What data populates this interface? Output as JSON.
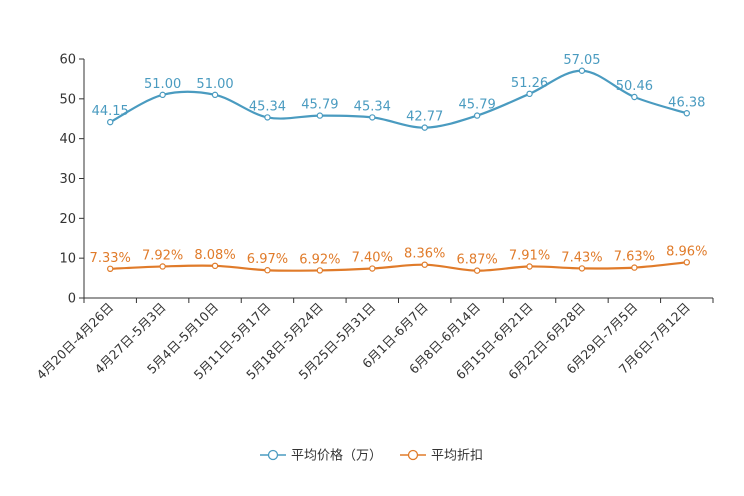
{
  "chart_data": {
    "type": "line",
    "categories": [
      "4月20日-4月26日",
      "4月27日-5月3日",
      "5月4日-5月10日",
      "5月11日-5月17日",
      "5月18日-5月24日",
      "5月25日-5月31日",
      "6月1日-6月7日",
      "6月8日-6月14日",
      "6月15日-6月21日",
      "6月22日-6月28日",
      "6月29日-7月5日",
      "7月6日-7月12日"
    ],
    "ylim": [
      0,
      60
    ],
    "yticks": [
      "0",
      "10",
      "20",
      "30",
      "40",
      "50",
      "60"
    ],
    "yticks_values": [
      0,
      10,
      20,
      30,
      40,
      50,
      60
    ],
    "smooth": true,
    "grid": false,
    "legend_position": "bottom-center",
    "series": [
      {
        "name": "平均价格（万）",
        "color": "#4a9bc0",
        "values": [
          44.15,
          51.0,
          51.0,
          45.34,
          45.79,
          45.34,
          42.77,
          45.79,
          51.26,
          57.05,
          50.46,
          46.38
        ],
        "labels": [
          "44.15",
          "51.00",
          "51.00",
          "45.34",
          "45.79",
          "45.34",
          "42.77",
          "45.79",
          "51.26",
          "57.05",
          "50.46",
          "46.38"
        ]
      },
      {
        "name": "平均折扣",
        "color": "#e07b2a",
        "values": [
          7.33,
          7.92,
          8.08,
          6.97,
          6.92,
          7.4,
          8.36,
          6.87,
          7.91,
          7.43,
          7.63,
          8.96
        ],
        "labels": [
          "7.33%",
          "7.92%",
          "8.08%",
          "6.97%",
          "6.92%",
          "7.40%",
          "8.36%",
          "6.87%",
          "7.91%",
          "7.43%",
          "7.63%",
          "8.96%"
        ]
      }
    ]
  }
}
